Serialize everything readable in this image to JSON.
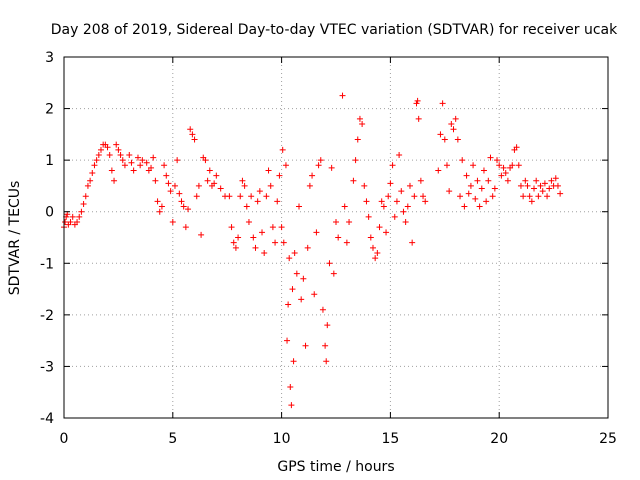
{
  "chart_data": {
    "type": "scatter",
    "title": "Day 208 of 2019, Sidereal Day-to-day VTEC variation (SDTVAR) for receiver ucak",
    "xlabel": "GPS time / hours",
    "ylabel": "SDTVAR / TECUs",
    "xlim": [
      0,
      25
    ],
    "ylim": [
      -4,
      3
    ],
    "x_ticks": [
      0,
      5,
      10,
      15,
      20,
      25
    ],
    "y_ticks": [
      -4,
      -3,
      -2,
      -1,
      0,
      1,
      2,
      3
    ],
    "x_tick_labels": [
      "0",
      "5",
      "10",
      "15",
      "20",
      "25"
    ],
    "y_tick_labels": [
      "-4",
      "-3",
      "-2",
      "-1",
      "0",
      "1",
      "2",
      "3"
    ],
    "grid": true,
    "marker": "+",
    "color": "#ff0000",
    "series": [
      {
        "name": "SDTVAR",
        "note": "dense overlapping tracks; representative points read from the plot",
        "points": [
          [
            0.0,
            -0.3
          ],
          [
            0.05,
            -0.2
          ],
          [
            0.1,
            -0.1
          ],
          [
            0.15,
            -0.05
          ],
          [
            0.2,
            -0.25
          ],
          [
            0.3,
            -0.2
          ],
          [
            0.4,
            -0.1
          ],
          [
            0.5,
            -0.25
          ],
          [
            0.6,
            -0.2
          ],
          [
            0.7,
            -0.1
          ],
          [
            0.8,
            0.0
          ],
          [
            0.9,
            0.15
          ],
          [
            1.0,
            0.3
          ],
          [
            1.1,
            0.5
          ],
          [
            1.2,
            0.6
          ],
          [
            1.3,
            0.75
          ],
          [
            1.4,
            0.9
          ],
          [
            1.5,
            1.0
          ],
          [
            1.6,
            1.1
          ],
          [
            1.7,
            1.2
          ],
          [
            1.8,
            1.3
          ],
          [
            1.9,
            1.3
          ],
          [
            2.0,
            1.25
          ],
          [
            2.1,
            1.1
          ],
          [
            2.2,
            0.8
          ],
          [
            2.3,
            0.6
          ],
          [
            2.4,
            1.3
          ],
          [
            2.5,
            1.2
          ],
          [
            2.6,
            1.1
          ],
          [
            2.7,
            1.0
          ],
          [
            2.8,
            0.9
          ],
          [
            3.0,
            1.1
          ],
          [
            3.1,
            0.95
          ],
          [
            3.2,
            0.8
          ],
          [
            3.4,
            1.05
          ],
          [
            3.5,
            0.9
          ],
          [
            3.6,
            1.0
          ],
          [
            3.8,
            0.95
          ],
          [
            3.9,
            0.8
          ],
          [
            4.0,
            0.85
          ],
          [
            4.1,
            1.05
          ],
          [
            4.2,
            0.6
          ],
          [
            4.3,
            0.2
          ],
          [
            4.4,
            0.0
          ],
          [
            4.5,
            0.1
          ],
          [
            4.6,
            0.9
          ],
          [
            4.7,
            0.7
          ],
          [
            4.8,
            0.55
          ],
          [
            4.9,
            0.4
          ],
          [
            5.0,
            -0.2
          ],
          [
            5.1,
            0.5
          ],
          [
            5.2,
            1.0
          ],
          [
            5.3,
            0.35
          ],
          [
            5.4,
            0.2
          ],
          [
            5.5,
            0.1
          ],
          [
            5.6,
            -0.3
          ],
          [
            5.7,
            0.05
          ],
          [
            5.8,
            1.6
          ],
          [
            5.9,
            1.5
          ],
          [
            6.0,
            1.4
          ],
          [
            6.1,
            0.3
          ],
          [
            6.2,
            0.5
          ],
          [
            6.3,
            -0.45
          ],
          [
            6.4,
            1.05
          ],
          [
            6.5,
            1.0
          ],
          [
            6.6,
            0.6
          ],
          [
            6.7,
            0.8
          ],
          [
            6.8,
            0.5
          ],
          [
            6.9,
            0.55
          ],
          [
            7.0,
            0.7
          ],
          [
            7.2,
            0.45
          ],
          [
            7.4,
            0.3
          ],
          [
            7.6,
            0.3
          ],
          [
            7.7,
            -0.3
          ],
          [
            7.8,
            -0.6
          ],
          [
            7.9,
            -0.7
          ],
          [
            8.0,
            -0.5
          ],
          [
            8.1,
            0.3
          ],
          [
            8.2,
            0.6
          ],
          [
            8.3,
            0.5
          ],
          [
            8.4,
            0.1
          ],
          [
            8.5,
            -0.2
          ],
          [
            8.6,
            0.3
          ],
          [
            8.7,
            -0.5
          ],
          [
            8.8,
            -0.7
          ],
          [
            8.9,
            0.2
          ],
          [
            9.0,
            0.4
          ],
          [
            9.1,
            -0.4
          ],
          [
            9.2,
            -0.8
          ],
          [
            9.3,
            0.3
          ],
          [
            9.4,
            0.8
          ],
          [
            9.5,
            0.5
          ],
          [
            9.6,
            -0.3
          ],
          [
            9.7,
            -0.6
          ],
          [
            9.8,
            0.2
          ],
          [
            9.9,
            0.7
          ],
          [
            10.0,
            -0.3
          ],
          [
            10.05,
            1.2
          ],
          [
            10.1,
            -0.6
          ],
          [
            10.2,
            0.9
          ],
          [
            10.25,
            -2.5
          ],
          [
            10.3,
            -1.8
          ],
          [
            10.35,
            -0.9
          ],
          [
            10.4,
            -3.4
          ],
          [
            10.45,
            -3.75
          ],
          [
            10.5,
            -1.5
          ],
          [
            10.55,
            -2.9
          ],
          [
            10.6,
            -0.8
          ],
          [
            10.7,
            -1.2
          ],
          [
            10.8,
            0.1
          ],
          [
            10.9,
            -1.7
          ],
          [
            11.0,
            -1.3
          ],
          [
            11.1,
            -2.6
          ],
          [
            11.2,
            -0.7
          ],
          [
            11.3,
            0.5
          ],
          [
            11.4,
            0.7
          ],
          [
            11.5,
            -1.6
          ],
          [
            11.6,
            -0.4
          ],
          [
            11.7,
            0.9
          ],
          [
            11.8,
            1.0
          ],
          [
            11.9,
            -1.9
          ],
          [
            12.0,
            -2.6
          ],
          [
            12.05,
            -2.9
          ],
          [
            12.1,
            -2.2
          ],
          [
            12.2,
            -1.0
          ],
          [
            12.3,
            0.85
          ],
          [
            12.4,
            -1.2
          ],
          [
            12.5,
            -0.2
          ],
          [
            12.6,
            -0.5
          ],
          [
            12.8,
            2.25
          ],
          [
            12.9,
            0.1
          ],
          [
            13.0,
            -0.6
          ],
          [
            13.1,
            -0.2
          ],
          [
            13.3,
            0.6
          ],
          [
            13.4,
            1.0
          ],
          [
            13.5,
            1.4
          ],
          [
            13.6,
            1.8
          ],
          [
            13.7,
            1.7
          ],
          [
            13.8,
            0.5
          ],
          [
            13.9,
            0.2
          ],
          [
            14.0,
            -0.1
          ],
          [
            14.1,
            -0.5
          ],
          [
            14.2,
            -0.7
          ],
          [
            14.3,
            -0.9
          ],
          [
            14.4,
            -0.8
          ],
          [
            14.5,
            -0.3
          ],
          [
            14.6,
            0.2
          ],
          [
            14.7,
            0.1
          ],
          [
            14.8,
            -0.4
          ],
          [
            14.9,
            0.3
          ],
          [
            15.0,
            0.55
          ],
          [
            15.1,
            0.9
          ],
          [
            15.2,
            -0.1
          ],
          [
            15.3,
            0.2
          ],
          [
            15.4,
            1.1
          ],
          [
            15.5,
            0.4
          ],
          [
            15.6,
            0.0
          ],
          [
            15.7,
            -0.2
          ],
          [
            15.8,
            0.1
          ],
          [
            15.9,
            0.5
          ],
          [
            16.0,
            -0.6
          ],
          [
            16.1,
            0.3
          ],
          [
            16.2,
            2.1
          ],
          [
            16.25,
            2.15
          ],
          [
            16.3,
            1.8
          ],
          [
            16.4,
            0.6
          ],
          [
            16.5,
            0.3
          ],
          [
            16.6,
            0.2
          ],
          [
            17.2,
            0.8
          ],
          [
            17.3,
            1.5
          ],
          [
            17.4,
            2.1
          ],
          [
            17.5,
            1.4
          ],
          [
            17.6,
            0.9
          ],
          [
            17.7,
            0.4
          ],
          [
            17.8,
            1.7
          ],
          [
            17.9,
            1.6
          ],
          [
            18.0,
            1.8
          ],
          [
            18.1,
            1.4
          ],
          [
            18.2,
            0.3
          ],
          [
            18.3,
            1.0
          ],
          [
            18.4,
            0.1
          ],
          [
            18.5,
            0.7
          ],
          [
            18.6,
            0.35
          ],
          [
            18.7,
            0.5
          ],
          [
            18.8,
            0.9
          ],
          [
            18.9,
            0.25
          ],
          [
            19.0,
            0.6
          ],
          [
            19.1,
            0.1
          ],
          [
            19.2,
            0.45
          ],
          [
            19.3,
            0.8
          ],
          [
            19.4,
            0.2
          ],
          [
            19.5,
            0.6
          ],
          [
            19.6,
            1.05
          ],
          [
            19.7,
            0.3
          ],
          [
            19.8,
            0.45
          ],
          [
            19.9,
            1.0
          ],
          [
            20.0,
            0.9
          ],
          [
            20.1,
            0.7
          ],
          [
            20.2,
            0.85
          ],
          [
            20.3,
            0.75
          ],
          [
            20.4,
            0.6
          ],
          [
            20.5,
            0.85
          ],
          [
            20.6,
            0.9
          ],
          [
            20.7,
            1.2
          ],
          [
            20.8,
            1.25
          ],
          [
            20.9,
            0.9
          ],
          [
            21.0,
            0.5
          ],
          [
            21.1,
            0.3
          ],
          [
            21.2,
            0.6
          ],
          [
            21.3,
            0.5
          ],
          [
            21.4,
            0.3
          ],
          [
            21.5,
            0.2
          ],
          [
            21.6,
            0.45
          ],
          [
            21.7,
            0.6
          ],
          [
            21.8,
            0.3
          ],
          [
            21.9,
            0.5
          ],
          [
            22.0,
            0.4
          ],
          [
            22.1,
            0.55
          ],
          [
            22.2,
            0.3
          ],
          [
            22.3,
            0.45
          ],
          [
            22.4,
            0.6
          ],
          [
            22.5,
            0.5
          ],
          [
            22.6,
            0.65
          ],
          [
            22.7,
            0.5
          ],
          [
            22.8,
            0.35
          ]
        ]
      }
    ]
  }
}
